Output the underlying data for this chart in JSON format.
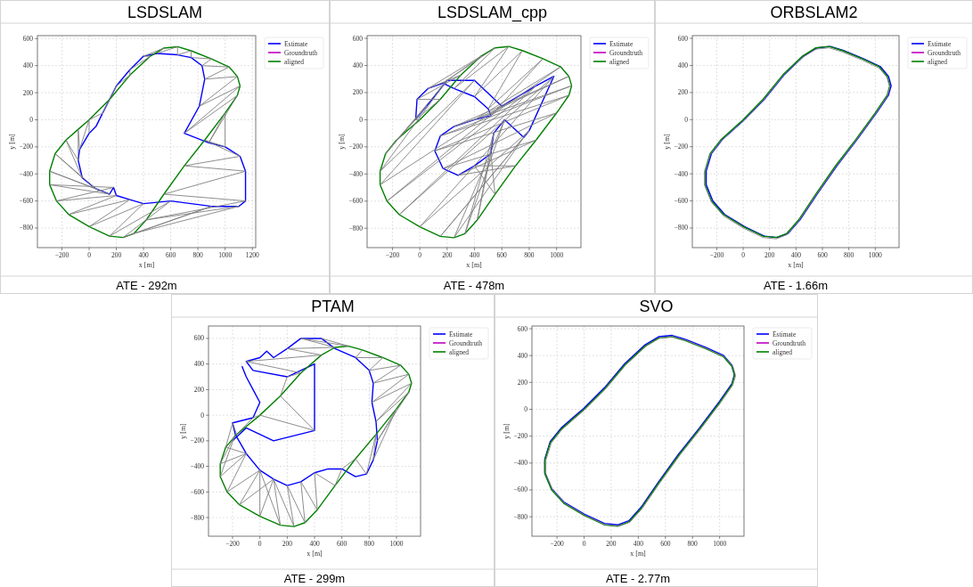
{
  "chart_data": [
    {
      "type": "line",
      "title": "LSDSLAM",
      "xlabel": "x [m]",
      "ylabel": "y [m]",
      "xlim": [
        -380,
        1225
      ],
      "ylim": [
        -945,
        622
      ],
      "xticks": [
        -200,
        0,
        200,
        400,
        600,
        800,
        1000,
        1200
      ],
      "yticks": [
        -800,
        -600,
        -400,
        -200,
        0,
        200,
        400,
        600
      ],
      "grid": true,
      "legend": "top right",
      "line_style": "solid",
      "annotations": [
        "ATE - 292m"
      ],
      "series": [
        {
          "name": "Estimate",
          "color": "#0000ff",
          "x": [
            100,
            200,
            300,
            400,
            500,
            650,
            750,
            830,
            850,
            810,
            700,
            880,
            1000,
            1110,
            1150,
            1150,
            1100,
            900,
            600,
            400,
            300,
            200,
            180,
            150,
            50,
            -50,
            -80,
            -70,
            0,
            50,
            95
          ],
          "values": [
            50,
            250,
            370,
            470,
            490,
            480,
            460,
            400,
            300,
            100,
            -100,
            -170,
            -200,
            -270,
            -380,
            -600,
            -640,
            -640,
            -600,
            -620,
            -590,
            -560,
            -500,
            -550,
            -510,
            -430,
            -300,
            -220,
            -100,
            -50,
            40
          ]
        },
        {
          "name": "Groundtruth",
          "color": "#bf00bf"
        },
        {
          "name": "aligned",
          "color": "#008000",
          "x": [
            0,
            150,
            300,
            450,
            550,
            650,
            750,
            900,
            1030,
            1090,
            1110,
            1090,
            1000,
            850,
            700,
            550,
            420,
            330,
            250,
            150,
            0,
            -150,
            -240,
            -290,
            -290,
            -250,
            -170,
            -80,
            -5
          ],
          "values": [
            0,
            150,
            330,
            470,
            530,
            540,
            510,
            450,
            390,
            320,
            250,
            180,
            50,
            -150,
            -340,
            -550,
            -740,
            -840,
            -870,
            -860,
            -790,
            -700,
            -600,
            -480,
            -380,
            -250,
            -150,
            -70,
            -5
          ]
        },
        {
          "color": "#808080",
          "x": [
            0,
            100,
            150,
            200,
            300,
            300,
            450,
            400,
            550,
            500,
            650,
            650,
            750,
            750,
            900,
            830,
            1030,
            850,
            1090,
            810,
            1110,
            700,
            1090,
            880,
            1000,
            1000,
            850,
            1110,
            700,
            1150,
            550,
            1150,
            420,
            1100,
            330,
            900,
            250,
            600,
            150,
            400,
            0,
            300,
            -150,
            200,
            -240,
            180,
            -290,
            150,
            -290,
            50,
            -250,
            -50,
            -170,
            -80,
            -80,
            -70,
            0,
            0
          ],
          "values": [
            0,
            50,
            150,
            250,
            330,
            370,
            470,
            470,
            530,
            490,
            540,
            480,
            510,
            460,
            450,
            400,
            390,
            300,
            320,
            100,
            250,
            -100,
            180,
            -170,
            50,
            -200,
            -150,
            -270,
            -340,
            -380,
            -550,
            -600,
            -740,
            -640,
            -840,
            -640,
            -870,
            -600,
            -860,
            -620,
            -790,
            -590,
            -700,
            -560,
            -600,
            -500,
            -480,
            -550,
            -380,
            -510,
            -250,
            -430,
            -150,
            -300,
            -70,
            -220,
            0,
            -100
          ]
        }
      ]
    },
    {
      "type": "line",
      "title": "LSDSLAM_cpp",
      "xlabel": "x [m]",
      "ylabel": "y [m]",
      "xlim": [
        -385,
        1178
      ],
      "ylim": [
        -943,
        620
      ],
      "xticks": [
        -200,
        0,
        200,
        400,
        600,
        800,
        1000
      ],
      "yticks": [
        -800,
        -600,
        -400,
        -200,
        0,
        200,
        400,
        600
      ],
      "grid": true,
      "legend": "top right",
      "line_style": "solid",
      "annotations": [
        "ATE - 478m"
      ],
      "series": [
        {
          "name": "Estimate",
          "color": "#0000ff",
          "x": [
            -30,
            -20,
            60,
            170,
            250,
            400,
            500,
            520,
            400,
            250,
            150,
            110,
            170,
            280,
            400,
            520,
            540,
            620,
            760,
            800,
            980,
            850,
            600,
            400,
            200,
            50,
            -25
          ],
          "values": [
            0,
            150,
            230,
            270,
            230,
            170,
            80,
            30,
            0,
            -50,
            -120,
            -230,
            -360,
            -410,
            -340,
            -250,
            -100,
            0,
            -130,
            -80,
            320,
            250,
            100,
            290,
            290,
            100,
            10
          ]
        },
        {
          "name": "Groundtruth",
          "color": "#bf00bf"
        },
        {
          "name": "aligned",
          "color": "#008000",
          "x": [
            0,
            150,
            300,
            450,
            550,
            650,
            750,
            900,
            1030,
            1090,
            1110,
            1090,
            1000,
            850,
            700,
            550,
            420,
            330,
            250,
            150,
            0,
            -150,
            -240,
            -290,
            -290,
            -250,
            -170,
            -80,
            -5
          ],
          "values": [
            0,
            150,
            330,
            470,
            530,
            540,
            510,
            450,
            390,
            320,
            250,
            180,
            50,
            -150,
            -340,
            -550,
            -740,
            -840,
            -870,
            -860,
            -790,
            -700,
            -600,
            -480,
            -380,
            -250,
            -150,
            -70,
            -5
          ]
        },
        {
          "color": "#808080",
          "x": [
            0,
            -30,
            150,
            -20,
            300,
            60,
            450,
            170,
            550,
            250,
            650,
            400,
            750,
            500,
            900,
            520,
            1030,
            400,
            1090,
            250,
            1110,
            150,
            1090,
            110,
            1000,
            170,
            850,
            280,
            700,
            400,
            550,
            520,
            420,
            540,
            330,
            620,
            250,
            760,
            150,
            800,
            0,
            980,
            -150,
            850,
            -240,
            600,
            -290,
            400,
            -290,
            200,
            -250,
            50,
            -170,
            -30
          ],
          "values": [
            0,
            0,
            150,
            150,
            330,
            230,
            470,
            270,
            530,
            230,
            540,
            170,
            510,
            80,
            450,
            30,
            390,
            0,
            320,
            -50,
            250,
            -120,
            180,
            -230,
            50,
            -360,
            -150,
            -410,
            -340,
            -340,
            -550,
            -250,
            -740,
            -100,
            -840,
            0,
            -870,
            -130,
            -860,
            -80,
            -790,
            320,
            -700,
            250,
            -600,
            100,
            -480,
            290,
            -380,
            290,
            -250,
            100,
            -150,
            0
          ]
        }
      ]
    },
    {
      "type": "line",
      "title": "ORBSLAM2",
      "xlabel": "x [m]",
      "ylabel": "y [m]",
      "xlim": [
        -385,
        1180
      ],
      "ylim": [
        -945,
        620
      ],
      "xticks": [
        -200,
        0,
        200,
        400,
        600,
        800,
        1000
      ],
      "yticks": [
        -800,
        -600,
        -400,
        -200,
        0,
        200,
        400,
        600
      ],
      "grid": true,
      "legend": "top right",
      "line_style": "solid",
      "annotations": [
        "ATE - 1.66m"
      ],
      "series": [
        {
          "name": "Estimate",
          "color": "#0000ff",
          "x": [
            10,
            160,
            310,
            460,
            560,
            660,
            760,
            910,
            1040,
            1100,
            1120,
            1100,
            1010,
            860,
            710,
            560,
            430,
            340,
            260,
            160,
            10,
            -140,
            -230,
            -280,
            -280,
            -240,
            -160,
            -70,
            5
          ],
          "values": [
            0,
            150,
            330,
            470,
            530,
            540,
            510,
            450,
            390,
            320,
            250,
            180,
            50,
            -150,
            -340,
            -550,
            -740,
            -840,
            -870,
            -860,
            -790,
            -700,
            -600,
            -480,
            -380,
            -250,
            -150,
            -70,
            -5
          ]
        },
        {
          "name": "Groundtruth",
          "color": "#bf00bf"
        },
        {
          "name": "aligned",
          "color": "#008000",
          "x": [
            0,
            150,
            300,
            450,
            550,
            650,
            750,
            900,
            1030,
            1090,
            1110,
            1090,
            1000,
            850,
            700,
            550,
            420,
            330,
            250,
            150,
            0,
            -150,
            -240,
            -290,
            -290,
            -250,
            -170,
            -80,
            -5
          ],
          "values": [
            0,
            150,
            330,
            470,
            530,
            540,
            510,
            450,
            390,
            320,
            250,
            180,
            50,
            -150,
            -340,
            -550,
            -740,
            -840,
            -870,
            -860,
            -790,
            -700,
            -600,
            -480,
            -380,
            -250,
            -150,
            -70,
            -5
          ]
        },
        {
          "color": "#808080",
          "x": [
            0,
            150,
            300,
            450,
            550,
            650,
            750,
            900,
            1030,
            1090,
            1110,
            1090,
            1000,
            850,
            700,
            550,
            420,
            330,
            250,
            150,
            0,
            -150,
            -240,
            -290,
            -290,
            -250,
            -170,
            -80,
            -5
          ],
          "values": [
            -10,
            140,
            320,
            460,
            520,
            530,
            500,
            440,
            380,
            310,
            240,
            170,
            40,
            -160,
            -350,
            -560,
            -750,
            -850,
            -880,
            -870,
            -800,
            -710,
            -610,
            -490,
            -390,
            -260,
            -160,
            -80,
            -15
          ]
        }
      ]
    },
    {
      "type": "line",
      "title": "PTAM",
      "xlabel": "x [m]",
      "ylabel": "y [m]",
      "xlim": [
        -376,
        1176
      ],
      "ylim": [
        -946,
        697
      ],
      "xticks": [
        -200,
        0,
        200,
        400,
        600,
        800,
        1000
      ],
      "yticks": [
        -800,
        -600,
        -400,
        -200,
        0,
        200,
        400,
        600
      ],
      "grid": true,
      "legend": "top right",
      "line_style": "solid",
      "annotations": [
        "ATE - 299m"
      ],
      "series": [
        {
          "name": "Estimate",
          "color": "#0000ff",
          "x": [
            -130,
            -100,
            -50,
            0,
            -50,
            -200,
            -180,
            -100,
            0,
            100,
            200,
            300,
            400,
            500,
            600,
            700,
            780,
            830,
            860,
            850,
            820,
            830,
            800,
            700,
            550,
            450,
            300,
            200,
            100,
            50,
            0,
            -100,
            -50,
            200,
            400,
            400,
            100,
            -100,
            -200
          ],
          "values": [
            380,
            300,
            200,
            100,
            -20,
            -60,
            -150,
            -300,
            -430,
            -500,
            -550,
            -520,
            -450,
            -420,
            -420,
            -480,
            -460,
            -350,
            -200,
            -50,
            100,
            250,
            350,
            450,
            520,
            600,
            600,
            520,
            450,
            500,
            450,
            420,
            350,
            300,
            400,
            -120,
            -200,
            -100,
            -200
          ]
        },
        {
          "name": "Groundtruth",
          "color": "#bf00bf"
        },
        {
          "name": "aligned",
          "color": "#008000",
          "x": [
            0,
            150,
            300,
            450,
            550,
            650,
            750,
            900,
            1030,
            1090,
            1110,
            1090,
            1000,
            850,
            700,
            550,
            420,
            330,
            250,
            150,
            0,
            -150,
            -240,
            -290,
            -290,
            -250,
            -170,
            -80,
            -5
          ],
          "values": [
            0,
            150,
            330,
            470,
            530,
            540,
            510,
            450,
            390,
            320,
            250,
            180,
            50,
            -150,
            -340,
            -550,
            -740,
            -840,
            -870,
            -860,
            -790,
            -700,
            -600,
            -480,
            -380,
            -250,
            -150,
            -70,
            -5
          ]
        },
        {
          "color": "#808080",
          "x": [
            750,
            700,
            900,
            800,
            1030,
            830,
            1090,
            820,
            1110,
            850,
            1090,
            860,
            1000,
            830,
            850,
            780,
            700,
            600,
            550,
            400,
            420,
            300,
            330,
            200,
            250,
            100,
            150,
            0,
            0,
            100,
            -150,
            0,
            -240,
            -100,
            -290,
            -180,
            -290,
            -100,
            -250,
            -200,
            -170,
            -50,
            0,
            400,
            150,
            200,
            300,
            -100,
            450,
            200,
            550,
            300,
            650,
            450
          ],
          "values": [
            510,
            450,
            450,
            350,
            390,
            250,
            320,
            100,
            250,
            -50,
            180,
            -200,
            50,
            -350,
            -150,
            -460,
            -340,
            -420,
            -550,
            -450,
            -740,
            -520,
            -840,
            -550,
            -870,
            -500,
            -860,
            -430,
            -790,
            -500,
            -700,
            -430,
            -600,
            -300,
            -480,
            -150,
            -380,
            -300,
            -250,
            -60,
            -150,
            -20,
            0,
            -120,
            150,
            300,
            330,
            420,
            470,
            520,
            530,
            600,
            540,
            600
          ]
        }
      ]
    },
    {
      "type": "line",
      "title": "SVO",
      "xlabel": "x [m]",
      "ylabel": "y [m]",
      "xlim": [
        -385,
        1180
      ],
      "ylim": [
        -945,
        620
      ],
      "xticks": [
        -200,
        0,
        200,
        400,
        600,
        800,
        1000
      ],
      "yticks": [
        -800,
        -600,
        -400,
        -200,
        0,
        200,
        400,
        600
      ],
      "grid": true,
      "legend": "top right",
      "line_style": "solid",
      "annotations": [
        "ATE - 2.77m"
      ],
      "series": [
        {
          "name": "Estimate",
          "color": "#0000ff",
          "x": [
            0,
            150,
            300,
            450,
            550,
            650,
            750,
            900,
            1030,
            1090,
            1110,
            1090,
            1000,
            850,
            700,
            550,
            420,
            330,
            250,
            150,
            0,
            -150,
            -240,
            -290,
            -290,
            -250,
            -170,
            -80,
            -5
          ],
          "values": [
            10,
            160,
            340,
            480,
            540,
            550,
            520,
            460,
            400,
            330,
            260,
            190,
            60,
            -140,
            -330,
            -540,
            -730,
            -830,
            -860,
            -850,
            -780,
            -690,
            -590,
            -470,
            -370,
            -240,
            -140,
            -60,
            5
          ]
        },
        {
          "name": "Groundtruth",
          "color": "#bf00bf"
        },
        {
          "name": "aligned",
          "color": "#008000",
          "x": [
            0,
            150,
            300,
            450,
            550,
            650,
            750,
            900,
            1030,
            1090,
            1110,
            1090,
            1000,
            850,
            700,
            550,
            420,
            330,
            250,
            150,
            0,
            -150,
            -240,
            -290,
            -290,
            -250,
            -170,
            -80,
            -5
          ],
          "values": [
            0,
            150,
            330,
            470,
            530,
            540,
            510,
            450,
            390,
            320,
            250,
            180,
            50,
            -150,
            -340,
            -550,
            -740,
            -840,
            -870,
            -860,
            -790,
            -700,
            -600,
            -480,
            -380,
            -250,
            -150,
            -70,
            -5
          ]
        },
        {
          "color": "#808080",
          "x": [
            8,
            158,
            308,
            458,
            558,
            658,
            758,
            908,
            1038,
            1098,
            1118,
            1098,
            1008,
            858,
            708,
            558,
            428,
            338,
            258,
            158,
            8,
            -142,
            -232,
            -282,
            -282,
            -242,
            -162,
            -72,
            3
          ],
          "values": [
            0,
            150,
            330,
            470,
            530,
            540,
            510,
            450,
            390,
            320,
            250,
            180,
            50,
            -150,
            -340,
            -550,
            -740,
            -840,
            -870,
            -860,
            -790,
            -700,
            -600,
            -480,
            -380,
            -250,
            -150,
            -70,
            -5
          ]
        }
      ]
    }
  ]
}
